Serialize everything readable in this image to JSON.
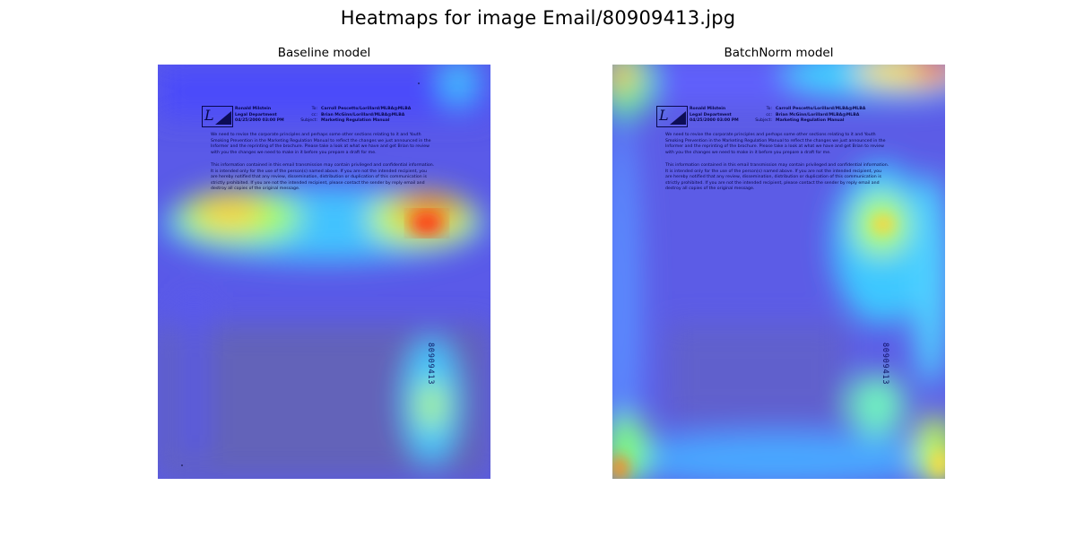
{
  "figure": {
    "title": "Heatmaps for image Email/80909413.jpg"
  },
  "panels": [
    {
      "title": "Baseline model"
    },
    {
      "title": "BatchNorm model"
    }
  ],
  "document": {
    "from_name": "Ronald Milstein",
    "from_dept": "Legal Department",
    "from_date": "04/25/2000 03:00 PM",
    "to_label": "To:",
    "cc_label": "cc:",
    "subject_label": "Subject:",
    "to_value": "Carroll Pescetto/Lorillard/MLBA@MLBA",
    "cc_value": "Brian McGinn/Lorillard/MLBA@MLBA",
    "subject_value": "Marketing Regulation Manual",
    "paragraph1": "We need to revise the corporate principles and perhaps some other sections relating to it and Youth Smoking Prevention in the Marketing Regulation Manual to reflect the changes we just announced in the Informer and the reprinting of the brochure. Please take a look at what we have and get Brian to review with you the changes we need to make in it before you prepare a draft for me.",
    "paragraph2": "This information contained in this email transmission may contain privileged and confidential information. It is intended only for the use of the person(s) named above. If you are not the intended recipient, you are hereby notified that any review, dissemination, distribution or duplication of this communication is strictly prohibited. If you are not the intended recipient, please contact the sender by reply email and destroy all copies of the original message.",
    "barcode": "80909413"
  },
  "colors": {
    "jet_low": "#3030ff",
    "jet_high": "#ff2000",
    "document_background": "#6b6bb0"
  }
}
